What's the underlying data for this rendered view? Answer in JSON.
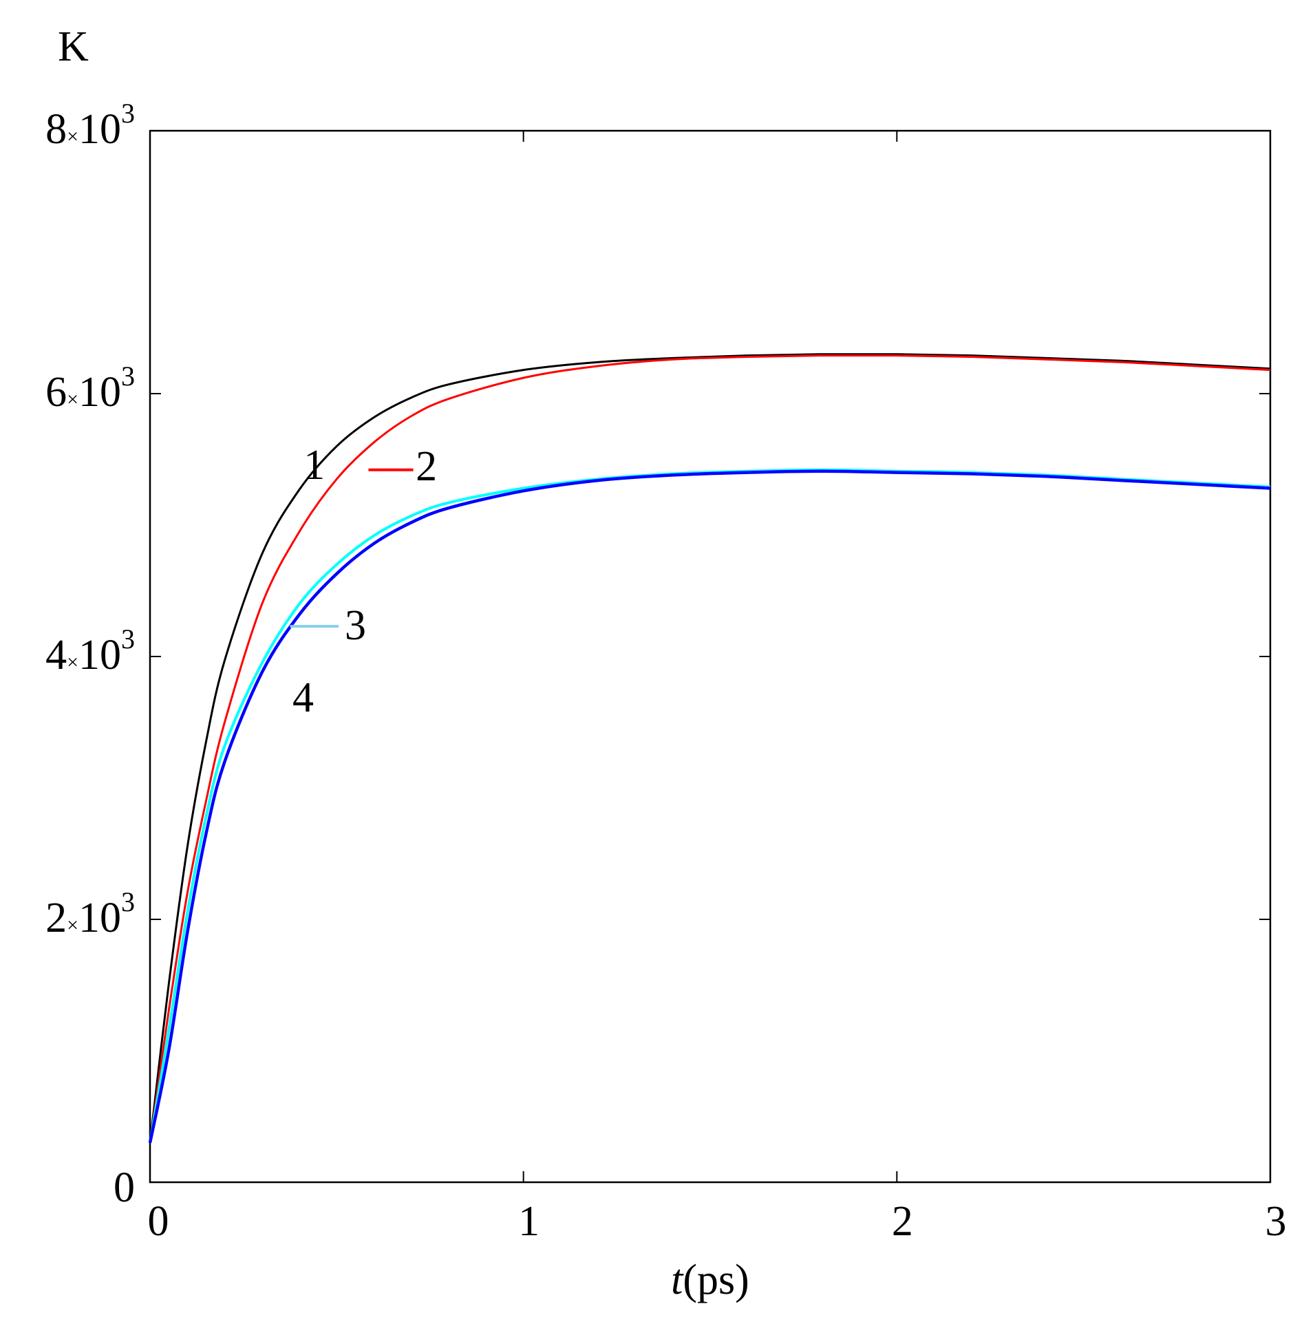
{
  "chart_data": {
    "type": "line",
    "title": "",
    "y_unit": "K",
    "xlabel": {
      "italic": "t",
      "rest": "(ps)"
    },
    "xlim": [
      0,
      3
    ],
    "ylim": [
      0,
      8000
    ],
    "x_ticks": [
      {
        "value": 0,
        "label": "0"
      },
      {
        "value": 1,
        "label": "1"
      },
      {
        "value": 2,
        "label": "2"
      },
      {
        "value": 3,
        "label": "3"
      }
    ],
    "y_ticks": [
      {
        "value": 0,
        "label": "0"
      },
      {
        "value": 2000,
        "mantissa": "2",
        "times": "×",
        "base": "10",
        "exp": "3"
      },
      {
        "value": 4000,
        "mantissa": "4",
        "times": "×",
        "base": "10",
        "exp": "3"
      },
      {
        "value": 6000,
        "mantissa": "6",
        "times": "×",
        "base": "10",
        "exp": "3"
      },
      {
        "value": 8000,
        "mantissa": "8",
        "times": "×",
        "base": "10",
        "exp": "3"
      }
    ],
    "grid": false,
    "series": [
      {
        "label": "1",
        "color": "#000000",
        "x": [
          0,
          0.05,
          0.1,
          0.15,
          0.2,
          0.3,
          0.4,
          0.5,
          0.6,
          0.7,
          0.8,
          1.0,
          1.2,
          1.4,
          1.6,
          1.8,
          2.0,
          2.2,
          2.4,
          2.6,
          2.8,
          3.0
        ],
        "y": [
          300,
          1500,
          2550,
          3350,
          3970,
          4780,
          5270,
          5600,
          5820,
          5970,
          6070,
          6180,
          6240,
          6270,
          6290,
          6300,
          6300,
          6290,
          6270,
          6250,
          6220,
          6190
        ]
      },
      {
        "label": "2",
        "color": "#ff0000",
        "x": [
          0,
          0.05,
          0.1,
          0.15,
          0.2,
          0.3,
          0.4,
          0.5,
          0.6,
          0.7,
          0.8,
          1.0,
          1.2,
          1.4,
          1.6,
          1.8,
          2.0,
          2.2,
          2.4,
          2.6,
          2.8,
          3.0
        ],
        "y": [
          300,
          1300,
          2200,
          2900,
          3500,
          4400,
          4950,
          5350,
          5630,
          5830,
          5960,
          6120,
          6210,
          6260,
          6280,
          6290,
          6290,
          6280,
          6260,
          6240,
          6210,
          6180
        ]
      },
      {
        "label": "3",
        "color": "#00ffff",
        "x": [
          0,
          0.05,
          0.1,
          0.15,
          0.2,
          0.3,
          0.4,
          0.5,
          0.6,
          0.7,
          0.8,
          1.0,
          1.2,
          1.4,
          1.6,
          1.8,
          2.0,
          2.2,
          2.4,
          2.6,
          2.8,
          3.0
        ],
        "y": [
          300,
          1150,
          2050,
          2780,
          3320,
          3950,
          4400,
          4700,
          4920,
          5070,
          5170,
          5280,
          5350,
          5390,
          5410,
          5420,
          5410,
          5400,
          5380,
          5350,
          5320,
          5290
        ]
      },
      {
        "label": "4",
        "color": "#0000ff",
        "x": [
          0,
          0.05,
          0.1,
          0.15,
          0.2,
          0.3,
          0.4,
          0.5,
          0.6,
          0.7,
          0.8,
          1.0,
          1.2,
          1.4,
          1.6,
          1.8,
          2.0,
          2.2,
          2.4,
          2.6,
          2.8,
          3.0
        ],
        "y": [
          300,
          1000,
          1900,
          2650,
          3200,
          3880,
          4320,
          4630,
          4860,
          5020,
          5130,
          5260,
          5340,
          5380,
          5400,
          5410,
          5400,
          5390,
          5370,
          5340,
          5310,
          5280
        ]
      }
    ],
    "curve_labels": [
      {
        "text": "1",
        "x": 0.44,
        "y": 5350,
        "leader": false
      },
      {
        "text": "2",
        "x": 0.74,
        "y": 5340,
        "leader": true,
        "leader_from_x": 0.585,
        "leader_to_x": 0.705,
        "leader_y": 5420,
        "color": "#ff0000"
      },
      {
        "text": "3",
        "x": 0.55,
        "y": 4130,
        "leader": true,
        "leader_from_x": 0.375,
        "leader_to_x": 0.505,
        "leader_y": 4230,
        "color": "#87ceeb"
      },
      {
        "text": "4",
        "x": 0.41,
        "y": 3580,
        "leader": false
      }
    ]
  }
}
